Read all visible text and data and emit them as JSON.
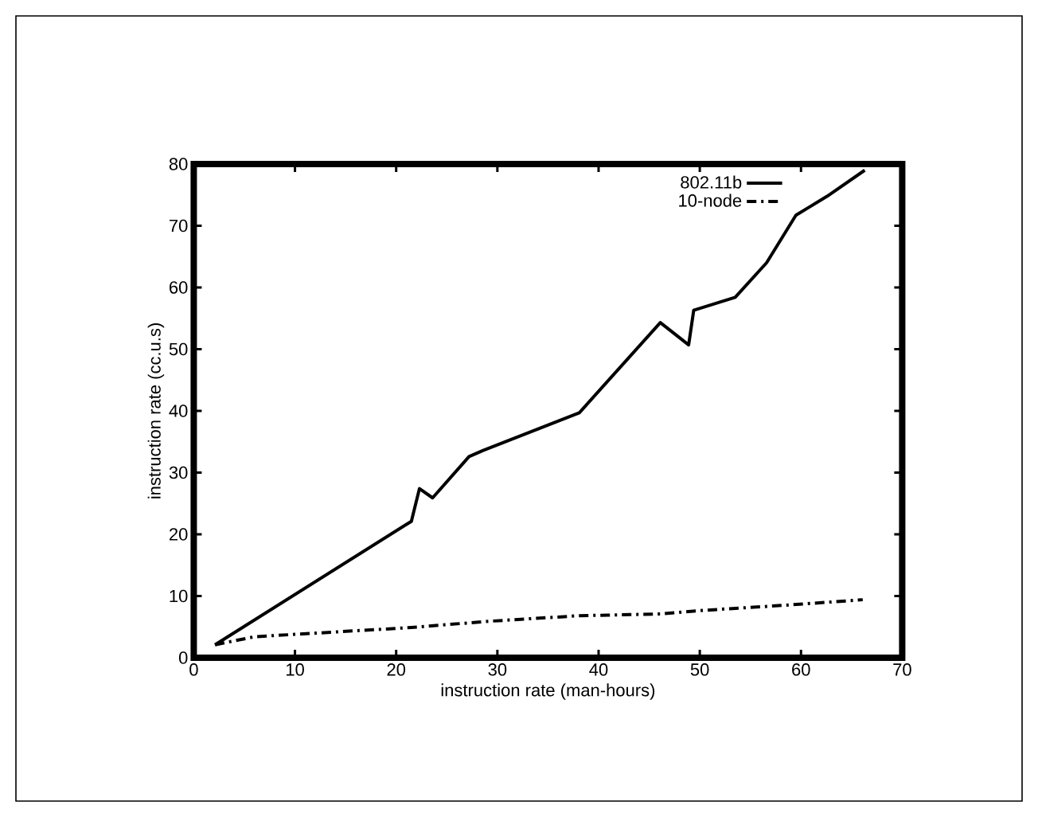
{
  "chart_data": {
    "type": "line",
    "xlabel": "instruction rate (man-hours)",
    "ylabel": "instruction rate (cc.u.s)",
    "xlim": [
      0,
      70
    ],
    "ylim": [
      0,
      80
    ],
    "xticks": [
      0,
      10,
      20,
      30,
      40,
      50,
      60,
      70
    ],
    "yticks": [
      0,
      10,
      20,
      30,
      40,
      50,
      60,
      70,
      80
    ],
    "legend": "top right",
    "grid": false,
    "marker": "none",
    "series": [
      {
        "name": "802.11b",
        "color": "#000000",
        "line_style": "solid",
        "x": [
          2.1,
          21.5,
          22.3,
          23.6,
          27.2,
          28.6,
          38.1,
          46.1,
          48.9,
          49.4,
          53.5,
          56.6,
          59.5,
          62.6,
          66.3
        ],
        "values": [
          2.1,
          22.1,
          27.4,
          25.9,
          32.6,
          33.6,
          39.7,
          54.3,
          50.7,
          56.3,
          58.4,
          64,
          71.7,
          74.8,
          79
        ]
      },
      {
        "name": "10-node",
        "color": "#000000",
        "line_style": "dashdot",
        "x": [
          2.1,
          6.0,
          21.5,
          29.1,
          38.0,
          46.2,
          50.6,
          58.4,
          66.1
        ],
        "values": [
          2.1,
          3.4,
          4.9,
          5.9,
          6.8,
          7.1,
          7.7,
          8.5,
          9.4
        ]
      }
    ]
  }
}
